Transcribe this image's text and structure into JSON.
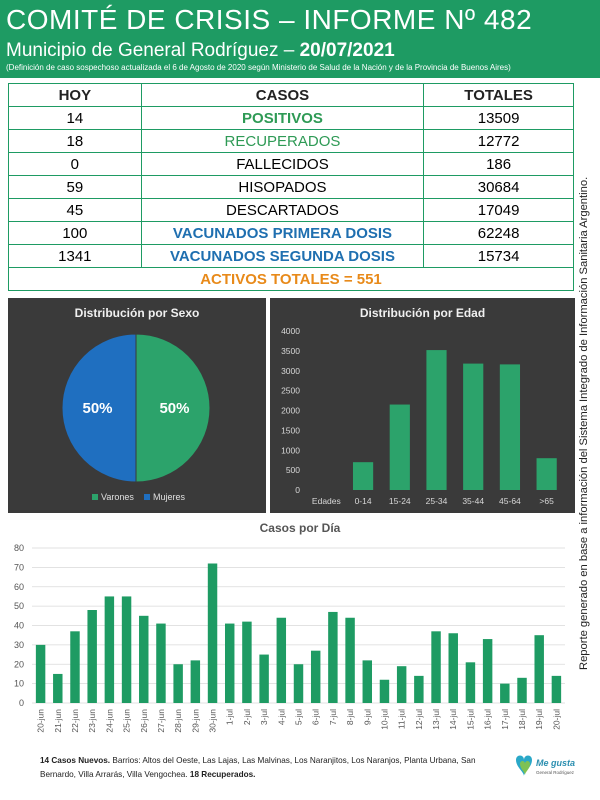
{
  "header": {
    "title": "COMITÉ DE CRISIS – INFORME Nº 482",
    "subtitle": "Municipio de General Rodríguez – ",
    "date": "20/07/2021",
    "note": "(Definición de caso sospechoso actualizada el 6 de Agosto de 2020 según Ministerio de Salud de la Nación y de la Provincia de Buenos Aires)"
  },
  "table": {
    "headers": [
      "HOY",
      "CASOS",
      "TOTALES"
    ],
    "rows": [
      {
        "hoy": "14",
        "caso": "POSITIVOS",
        "total": "13509"
      },
      {
        "hoy": "18",
        "caso": "RECUPERADOS",
        "total": "12772"
      },
      {
        "hoy": "0",
        "caso": "FALLECIDOS",
        "total": "186"
      },
      {
        "hoy": "59",
        "caso": "HISOPADOS",
        "total": "30684"
      },
      {
        "hoy": "45",
        "caso": "DESCARTADOS",
        "total": "17049"
      },
      {
        "hoy": "100",
        "caso": "VACUNADOS PRIMERA DOSIS",
        "total": "62248"
      },
      {
        "hoy": "1341",
        "caso": "VACUNADOS SEGUNDA DOSIS",
        "total": "15734"
      }
    ],
    "activos": "ACTIVOS TOTALES = 551"
  },
  "side_note": "Reporte generado en base a información del Sistema Integrado de Información Sanitaria Argentino.",
  "footer": {
    "lead": "14 Casos Nuevos.",
    "text": " Barrios: Altos del Oeste, Las Lajas, Las Malvinas, Los Naranjitos, Los Naranjos, Planta Urbana, San Bernardo, Villa Arrarás, Villa Vengochea. ",
    "tail": "18 Recuperados."
  },
  "logo": {
    "line1": "Me gusta",
    "line2": "General Rodríguez"
  },
  "colors": {
    "green": "#1e9b63",
    "blue": "#1f6fb0",
    "orange": "#e88a1a",
    "panel": "#3a3a3a"
  },
  "chart_data": [
    {
      "type": "pie",
      "title": "Distribución  por Sexo",
      "categories": [
        "Varones",
        "Mujeres"
      ],
      "values": [
        50,
        50
      ],
      "labels": [
        "50%",
        "50%"
      ],
      "colors": [
        "#2ca36b",
        "#1f6fc0"
      ],
      "legend": "bottom"
    },
    {
      "type": "bar",
      "title": "Distribución  por Edad",
      "axis_label": "Edades",
      "categories": [
        "0-14",
        "15-24",
        "25-34",
        "35-44",
        "45-64",
        ">65"
      ],
      "values": [
        700,
        2150,
        3520,
        3180,
        3160,
        800
      ],
      "ylim": [
        0,
        4000
      ],
      "yticks": [
        0,
        500,
        1000,
        1500,
        2000,
        2500,
        3000,
        3500,
        4000
      ],
      "grid": false
    },
    {
      "type": "bar",
      "title": "Casos por Día",
      "categories": [
        "20-jun",
        "21-jun",
        "22-jun",
        "23-jun",
        "24-jun",
        "25-jun",
        "26-jun",
        "27-jun",
        "28-jun",
        "29-jun",
        "30-jun",
        "1-jul",
        "2-jul",
        "3-jul",
        "4-jul",
        "5-jul",
        "6-jul",
        "7-jul",
        "8-jul",
        "9-jul",
        "10-jul",
        "11-jul",
        "12-jul",
        "13-jul",
        "14-jul",
        "15-jul",
        "16-jul",
        "17-jul",
        "18-jul",
        "19-jul",
        "20-jul"
      ],
      "values": [
        30,
        15,
        37,
        48,
        55,
        55,
        45,
        41,
        20,
        22,
        72,
        41,
        42,
        25,
        44,
        20,
        27,
        47,
        44,
        22,
        12,
        19,
        14,
        37,
        36,
        21,
        33,
        10,
        13,
        35,
        14
      ],
      "ylim": [
        0,
        80
      ],
      "yticks": [
        0,
        10,
        20,
        30,
        40,
        50,
        60,
        70,
        80
      ],
      "grid": true
    }
  ]
}
